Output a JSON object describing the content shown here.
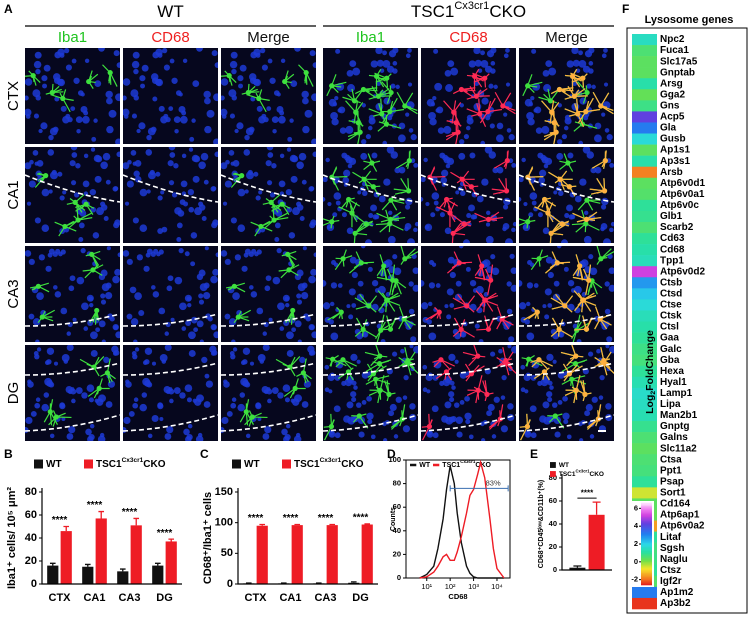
{
  "panel_a": {
    "label": "A",
    "groups": [
      {
        "title": [
          "WT"
        ]
      },
      {
        "title": [
          "TSC1",
          "Cx3cr1",
          "CKO"
        ]
      }
    ],
    "channels": [
      "Iba1",
      "CD68",
      "Merge"
    ],
    "regions": [
      "CTX",
      "CA1",
      "CA3",
      "DG"
    ]
  },
  "chart_data": [
    {
      "label": "B",
      "type": "bar",
      "y_label": "Iba1⁺ cells/ 10⁵ μm²",
      "categories": [
        "CTX",
        "CA1",
        "CA3",
        "DG"
      ],
      "ylim": [
        0,
        80
      ],
      "yticks": [
        0,
        20,
        40,
        60,
        80
      ],
      "series": [
        {
          "name": [
            "WT"
          ],
          "color": "#111111",
          "values": [
            16,
            15,
            11,
            16
          ],
          "errors": [
            2,
            2,
            2,
            2
          ]
        },
        {
          "name": [
            "TSC1",
            "Cx3cr1",
            "CKO"
          ],
          "color": "#ee1c25",
          "values": [
            46,
            57,
            51,
            37
          ],
          "errors": [
            4,
            6,
            6,
            2
          ]
        }
      ],
      "annotations": [
        "****",
        "****",
        "****",
        "****"
      ]
    },
    {
      "label": "C",
      "type": "bar",
      "y_label": "CD68⁺/Iba1⁺ cells",
      "categories": [
        "CTX",
        "CA1",
        "CA3",
        "DG"
      ],
      "ylim": [
        0,
        150
      ],
      "yticks": [
        0,
        50,
        100,
        150
      ],
      "series": [
        {
          "name": [
            "WT"
          ],
          "color": "#111111",
          "values": [
            1,
            1,
            1,
            2
          ],
          "errors": [
            0.5,
            0.5,
            0.5,
            1.5
          ]
        },
        {
          "name": [
            "TSC1",
            "Cx3cr1",
            "CKO"
          ],
          "color": "#ee1c25",
          "values": [
            95,
            96,
            96,
            97
          ],
          "errors": [
            2,
            1,
            1,
            1
          ]
        }
      ],
      "annotations": [
        "****",
        "****",
        "****",
        "****"
      ]
    },
    {
      "label": "D",
      "type": "line",
      "y_label": "Counts",
      "x_label": "CD68",
      "xscale": "log",
      "xlim": [
        1.3,
        36000
      ],
      "xticks": [
        {
          "value": 10,
          "label": "10¹"
        },
        {
          "value": 100,
          "label": "10²"
        },
        {
          "value": 1000,
          "label": "10³"
        },
        {
          "value": 10000,
          "label": "10⁴"
        }
      ],
      "ylim": [
        0,
        100
      ],
      "yticks": [
        0,
        20,
        40,
        60,
        80,
        100
      ],
      "x": [
        5,
        10,
        20,
        30,
        50,
        70,
        100,
        150,
        200,
        300,
        500,
        700,
        1000,
        1500,
        2000,
        3000,
        5000,
        7000,
        10000,
        20000
      ],
      "series": [
        {
          "name": [
            "WT"
          ],
          "color": "#111111",
          "values": [
            0,
            3,
            10,
            25,
            50,
            75,
            95,
            80,
            55,
            30,
            10,
            4,
            1,
            0,
            0,
            0,
            0,
            0,
            0,
            0
          ]
        },
        {
          "name": [
            "TSC1",
            "Cx3cr1",
            "CKO"
          ],
          "color": "#ee1c25",
          "values": [
            0,
            1,
            5,
            10,
            18,
            20,
            15,
            15,
            22,
            35,
            55,
            70,
            75,
            88,
            98,
            85,
            50,
            25,
            8,
            0
          ]
        }
      ],
      "gate": {
        "x": [
          100,
          30000
        ],
        "y": 76,
        "label": "83%"
      }
    },
    {
      "label": "E",
      "type": "bar",
      "y_label": "CD68⁺CD45ˡᵒʷ&CD11b⁺(%)",
      "categories": [
        null
      ],
      "ylim": [
        0,
        80
      ],
      "yticks": [
        0,
        20,
        40,
        60,
        80
      ],
      "series": [
        {
          "name": [
            "WT"
          ],
          "color": "#111111",
          "values": [
            2
          ],
          "errors": [
            1.5
          ]
        },
        {
          "name": [
            "TSC1",
            "Cx3cr1",
            "CKO"
          ],
          "color": "#ee1c25",
          "values": [
            48
          ],
          "errors": [
            11
          ]
        }
      ],
      "annotations": [
        "****"
      ]
    }
  ],
  "panel_f": {
    "label": "F",
    "title": "Lysosome genes",
    "colorbar_label": [
      "Log",
      "2",
      "FoldChange"
    ],
    "colorbar_lim": [
      -2.6,
      6.6
    ],
    "colorbar_ticks": [
      6,
      4,
      2,
      0,
      -2
    ],
    "genes": [
      "Npc2",
      "Fuca1",
      "Slc17a5",
      "Gnptab",
      "Arsg",
      "Gga2",
      "Gns",
      "Acp5",
      "Gla",
      "Gusb",
      "Ap1s1",
      "Ap3s1",
      "Arsb",
      "Atp6v0d1",
      "Atp6v0a1",
      "Atp6v0c",
      "Glb1",
      "Scarb2",
      "Cd63",
      "Cd68",
      "Tpp1",
      "Atp6v0d2",
      "Ctsb",
      "Ctsd",
      "Ctse",
      "Ctsk",
      "Ctsl",
      "Gaa",
      "Galc",
      "Gba",
      "Hexa",
      "Hyal1",
      "Lamp1",
      "Lipa",
      "Man2b1",
      "Gnptg",
      "Galns",
      "Slc11a2",
      "Ctsa",
      "Ppt1",
      "Psap",
      "Sort1",
      "Cd164",
      "Atp6ap1",
      "Atp6v0a2",
      "Litaf",
      "Sgsh",
      "Naglu",
      "Ctsz",
      "Igf2r",
      "Ap1m2",
      "Ap3b2"
    ],
    "values": [
      1.5,
      0.6,
      0.4,
      0.4,
      1.2,
      0.3,
      0.8,
      4.3,
      3.2,
      1.8,
      0.4,
      1.2,
      -1.8,
      0.4,
      0.5,
      1.0,
      0.9,
      0.6,
      1.0,
      1.2,
      1.4,
      5.2,
      2.8,
      2.2,
      1.8,
      1.4,
      1.2,
      1.0,
      0.8,
      0.7,
      1.0,
      1.3,
      1.6,
      1.5,
      1.3,
      0.9,
      0.6,
      0.4,
      0.6,
      0.7,
      1.0,
      -0.5,
      0.4,
      0.3,
      -1.5,
      1.0,
      0.7,
      0.8,
      1.0,
      0.5,
      3.2,
      -2.4
    ]
  }
}
